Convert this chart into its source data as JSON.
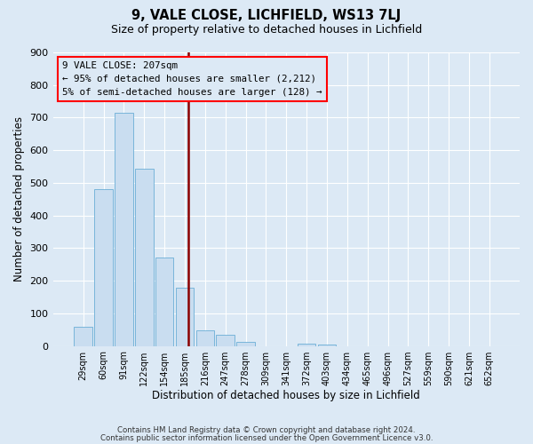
{
  "title": "9, VALE CLOSE, LICHFIELD, WS13 7LJ",
  "subtitle": "Size of property relative to detached houses in Lichfield",
  "xlabel": "Distribution of detached houses by size in Lichfield",
  "ylabel": "Number of detached properties",
  "footer_line1": "Contains HM Land Registry data © Crown copyright and database right 2024.",
  "footer_line2": "Contains public sector information licensed under the Open Government Licence v3.0.",
  "bar_labels": [
    "29sqm",
    "60sqm",
    "91sqm",
    "122sqm",
    "154sqm",
    "185sqm",
    "216sqm",
    "247sqm",
    "278sqm",
    "309sqm",
    "341sqm",
    "372sqm",
    "403sqm",
    "434sqm",
    "465sqm",
    "496sqm",
    "527sqm",
    "559sqm",
    "590sqm",
    "621sqm",
    "652sqm"
  ],
  "bar_values": [
    60,
    480,
    715,
    543,
    270,
    178,
    48,
    33,
    13,
    0,
    0,
    8,
    5,
    0,
    0,
    0,
    0,
    0,
    0,
    0,
    0
  ],
  "bar_color": "#c9ddf0",
  "bar_edgecolor": "#6baed6",
  "annotation_title": "9 VALE CLOSE: 207sqm",
  "annotation_line1": "← 95% of detached houses are smaller (2,212)",
  "annotation_line2": "5% of semi-detached houses are larger (128) →",
  "line_color": "#8b0000",
  "ylim": [
    0,
    900
  ],
  "yticks": [
    0,
    100,
    200,
    300,
    400,
    500,
    600,
    700,
    800,
    900
  ],
  "background_color": "#dce9f5",
  "bar_width": 0.9
}
